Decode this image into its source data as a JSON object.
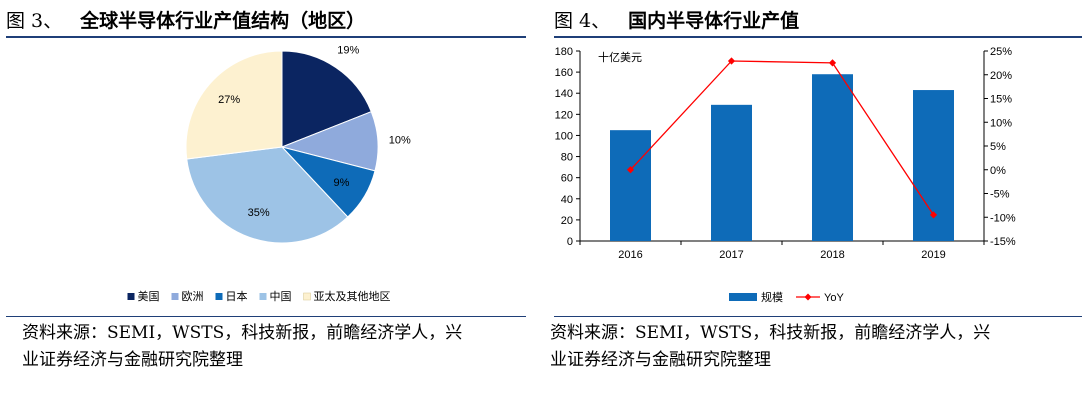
{
  "figures": [
    {
      "number": "图 3、",
      "title": "全球半导体行业产值结构（地区）",
      "source": [
        "资料来源：SEMI，WSTS，科技新报，前瞻经济学人，兴",
        "业证券经济与金融研究院整理"
      ]
    },
    {
      "number": "图 4、",
      "title": "国内半导体行业产值",
      "source": [
        "资料来源：SEMI，WSTS，科技新报，前瞻经济学人，兴",
        "业证券经济与金融研究院整理"
      ]
    }
  ],
  "chart_data": [
    {
      "type": "pie",
      "title": "全球半导体行业产值结构（地区）",
      "slices": [
        {
          "name": "美国",
          "value": 19,
          "label": "19%",
          "color": "#0b2561"
        },
        {
          "name": "欧洲",
          "value": 10,
          "label": "10%",
          "color": "#8faadc"
        },
        {
          "name": "日本",
          "value": 9,
          "label": "9%",
          "color": "#0e6bb8"
        },
        {
          "name": "中国",
          "value": 35,
          "label": "35%",
          "color": "#9dc3e6"
        },
        {
          "name": "亚太及其他地区",
          "value": 27,
          "label": "27%",
          "color": "#fdf1d0"
        }
      ],
      "legend_position": "bottom",
      "start_angle": "top, clockwise"
    },
    {
      "type": "bar+line",
      "title": "国内半导体行业产值",
      "unit_label": "十亿美元",
      "categories": [
        "2016",
        "2017",
        "2018",
        "2019"
      ],
      "series": [
        {
          "name": "规模",
          "type": "bar",
          "axis": "left",
          "values": [
            105,
            129,
            158,
            143
          ],
          "color": "#0e6bb8"
        },
        {
          "name": "YoY",
          "type": "line",
          "axis": "right",
          "values": [
            0,
            22.9,
            22.5,
            -9.5
          ],
          "color": "#ff0000"
        }
      ],
      "y_left": {
        "min": 0,
        "max": 180,
        "step": 20,
        "ticks": [
          "0",
          "20",
          "40",
          "60",
          "80",
          "100",
          "120",
          "140",
          "160",
          "180"
        ]
      },
      "y_right": {
        "min": -15,
        "max": 25,
        "step": 5,
        "ticks": [
          "-15%",
          "-10%",
          "-5%",
          "0%",
          "5%",
          "10%",
          "15%",
          "20%",
          "25%"
        ]
      },
      "legend_position": "bottom",
      "grid": false
    }
  ]
}
